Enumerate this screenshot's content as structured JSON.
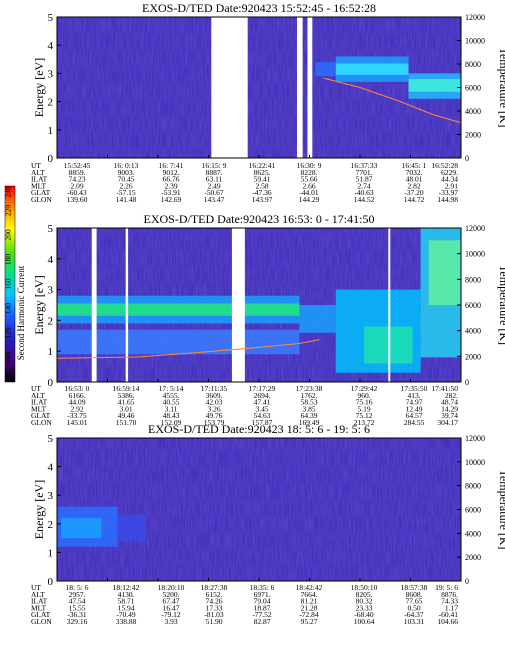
{
  "colors": {
    "background": "#ffffff",
    "spectrogram_base": "#3a26b8",
    "gap": "#ffffff",
    "temperature_line": "#ff8a3d"
  },
  "colorbar": {
    "label": "Second Harmonic Current",
    "ticks": [
      "80",
      "100",
      "120",
      "140",
      "160",
      "180",
      "200",
      "220",
      "240"
    ],
    "stops": [
      "#000000",
      "#4b0082",
      "#2020c8",
      "#1e5aff",
      "#00c8ff",
      "#00e08a",
      "#5ae000",
      "#ffff00",
      "#ff9000",
      "#ff0000"
    ]
  },
  "chart_data": [
    {
      "type": "heatmap",
      "title": "EXOS-D/TED   Date:920423  15:52:45 - 16:52:28",
      "ylabel": "Energy [eV]",
      "ylabel_right": "Temperature [K]",
      "ylim": [
        0,
        5
      ],
      "ylim_right": [
        0,
        12000
      ],
      "yticks": [
        "0",
        "1",
        "2",
        "3",
        "4",
        "5"
      ],
      "yticks_right": [
        "0",
        "2000",
        "4000",
        "6000",
        "8000",
        "10000",
        "12000"
      ],
      "x_fraction_range": [
        0,
        1
      ],
      "gaps": [
        [
          0.382,
          0.472
        ],
        [
          0.594,
          0.608
        ],
        [
          0.62,
          0.632
        ]
      ],
      "bands": [
        {
          "x": [
            0.69,
            0.87
          ],
          "y": [
            2.7,
            3.6
          ],
          "color": "#1aa0ff"
        },
        {
          "x": [
            0.69,
            0.87
          ],
          "y": [
            2.95,
            3.35
          ],
          "color": "#33e0ff"
        },
        {
          "x": [
            0.87,
            1.0
          ],
          "y": [
            2.1,
            3.0
          ],
          "color": "#24b8ff"
        },
        {
          "x": [
            0.87,
            1.0
          ],
          "y": [
            2.35,
            2.8
          ],
          "color": "#40f0d8"
        },
        {
          "x": [
            0.64,
            0.69
          ],
          "y": [
            2.9,
            3.4
          ],
          "color": "#2a6eff"
        }
      ],
      "temperature": {
        "x": [
          0.66,
          0.75,
          0.85,
          0.93,
          1.0
        ],
        "kelvin": [
          6800,
          6000,
          4800,
          3700,
          3000
        ]
      },
      "table": {
        "rows": [
          "UT",
          "ALT",
          "ILAT",
          "MLT",
          "GLAT",
          "GLON"
        ],
        "columns": [
          [
            "15:52:45",
            "8859.",
            "74.23",
            "2.09",
            "-60.43",
            "139.60"
          ],
          [
            "16: 0:13",
            "9003.",
            "70.45",
            "2.26",
            "-57.15",
            "141.48"
          ],
          [
            "16: 7:41",
            "9012.",
            "66.76",
            "2.39",
            "-53.91",
            "142.69"
          ],
          [
            "16:15: 9",
            "8887.",
            "63.11",
            "2.49",
            "-50.67",
            "143.47"
          ],
          [
            "16:22:41",
            "8625.",
            "59.41",
            "2.58",
            "-47.36",
            "143.97"
          ],
          [
            "16:30: 9",
            "8228.",
            "55.66",
            "2.66",
            "-44.01",
            "144.29"
          ],
          [
            "16:37:33",
            "7701.",
            "51.87",
            "2.74",
            "-40.63",
            "144.52"
          ],
          [
            "16:45: 1",
            "7032.",
            "48.01",
            "2.82",
            "-37.20",
            "144.72"
          ],
          [
            "16:52:28",
            "6229.",
            "44.34",
            "2.91",
            "-33.97",
            "144.98"
          ]
        ]
      }
    },
    {
      "type": "heatmap",
      "title": "EXOS-D/TED   Date:920423  16:53: 0 - 17:41:50",
      "ylabel": "Energy [eV]",
      "ylabel_right": "Temperature [K]",
      "ylim": [
        0,
        5
      ],
      "ylim_right": [
        0,
        12000
      ],
      "yticks": [
        "0",
        "1",
        "2",
        "3",
        "4",
        "5"
      ],
      "yticks_right": [
        "0",
        "2000",
        "4000",
        "6000",
        "8000",
        "10000",
        "12000"
      ],
      "x_fraction_range": [
        0,
        1
      ],
      "gaps": [
        [
          0.086,
          0.098
        ],
        [
          0.17,
          0.176
        ],
        [
          0.433,
          0.465
        ],
        [
          0.82,
          0.825
        ]
      ],
      "bands": [
        {
          "x": [
            0.0,
            0.6
          ],
          "y": [
            1.9,
            2.8
          ],
          "color": "#1aa0ff"
        },
        {
          "x": [
            0.0,
            0.6
          ],
          "y": [
            2.15,
            2.55
          ],
          "color": "#20e87c"
        },
        {
          "x": [
            0.6,
            0.69
          ],
          "y": [
            1.6,
            2.5
          ],
          "color": "#1aa0ff"
        },
        {
          "x": [
            0.69,
            0.9
          ],
          "y": [
            0.3,
            3.0
          ],
          "color": "#00c0ff"
        },
        {
          "x": [
            0.76,
            0.88
          ],
          "y": [
            0.6,
            1.8
          ],
          "color": "#1ee0b0"
        },
        {
          "x": [
            0.9,
            1.0
          ],
          "y": [
            0.8,
            5.0
          ],
          "color": "#24d0f0"
        },
        {
          "x": [
            0.92,
            1.0
          ],
          "y": [
            2.5,
            4.6
          ],
          "color": "#60f0a0"
        },
        {
          "x": [
            0.0,
            0.6
          ],
          "y": [
            0.9,
            1.7
          ],
          "color": "#3a7cff"
        }
      ],
      "temperature": {
        "x": [
          0.0,
          0.2,
          0.35,
          0.5,
          0.6,
          0.65
        ],
        "kelvin": [
          1850,
          1950,
          2300,
          2700,
          3000,
          3300
        ]
      },
      "table": {
        "rows": [
          "UT",
          "ALT",
          "ILAT",
          "MLT",
          "GLAT",
          "GLON"
        ],
        "columns": [
          [
            "16:53: 0",
            "6166.",
            "44.09",
            "2.92",
            "-33.75",
            "145.01"
          ],
          [
            "16:59:14",
            "5386.",
            "41.65",
            "3.01",
            "49.46",
            "151.70"
          ],
          [
            "17: 5:14",
            "4555.",
            "40.55",
            "3.11",
            "48.43",
            "152.09"
          ],
          [
            "17:11:35",
            "3609.",
            "42.03",
            "3.26",
            "49.76",
            "153.79"
          ],
          [
            "17:17:29",
            "2694.",
            "47.41",
            "3.45",
            "54.63",
            "157.87"
          ],
          [
            "17:23:38",
            "1762.",
            "58.53",
            "3.85",
            "64.39",
            "169.49"
          ],
          [
            "17:29:42",
            "960.",
            "75.16",
            "5.19",
            "75.12",
            "213.72"
          ],
          [
            "17:35:50",
            "413.",
            "74.97",
            "12.49",
            "64.57",
            "284.55"
          ],
          [
            "17:41:50",
            "282.",
            "48.74",
            "14.29",
            "39.74",
            "304.17"
          ]
        ]
      }
    },
    {
      "type": "heatmap",
      "title": "EXOS-D/TED   Date:920423  18: 5: 6 - 19: 5: 6",
      "ylabel": "Energy [eV]",
      "ylabel_right": "Temperature [K]",
      "ylim": [
        0,
        5
      ],
      "ylim_right": [
        0,
        12000
      ],
      "yticks": [
        "0",
        "1",
        "2",
        "3",
        "4",
        "5"
      ],
      "yticks_right": [
        "0",
        "2000",
        "4000",
        "6000",
        "8000",
        "10000",
        "12000"
      ],
      "x_fraction_range": [
        0,
        1
      ],
      "gaps": [],
      "bands": [
        {
          "x": [
            0.0,
            0.15
          ],
          "y": [
            1.2,
            2.6
          ],
          "color": "#2a6eff"
        },
        {
          "x": [
            0.01,
            0.11
          ],
          "y": [
            1.5,
            2.2
          ],
          "color": "#1aa0ff"
        },
        {
          "x": [
            0.15,
            0.22
          ],
          "y": [
            1.4,
            2.3
          ],
          "color": "#3a4ae8"
        }
      ],
      "temperature": {
        "x": [],
        "kelvin": []
      },
      "table": {
        "rows": [
          "UT",
          "ALT",
          "ILAT",
          "MLT",
          "GLAT",
          "GLON"
        ],
        "columns": [
          [
            "18: 5: 6",
            "2957.",
            "47.54",
            "15.55",
            "-36.31",
            "329.16"
          ],
          [
            "18:12:42",
            "4130.",
            "58.71",
            "15.94",
            "-70.49",
            "338.88"
          ],
          [
            "18:20:10",
            "5200.",
            "67.47",
            "16.47",
            "-79.12",
            "3.93"
          ],
          [
            "18:27:38",
            "6152.",
            "74.26",
            "17.33",
            "-81.03",
            "51.90"
          ],
          [
            "18:35: 6",
            "6971.",
            "79.04",
            "18.87",
            "-77.52",
            "82.87"
          ],
          [
            "18:42:42",
            "7664.",
            "81.21",
            "21.28",
            "-72.84",
            "95.27"
          ],
          [
            "18:50:10",
            "8205.",
            "80.32",
            "23.33",
            "-68.40",
            "100.64"
          ],
          [
            "18:57:38",
            "8608.",
            "77.65",
            "0.50",
            "-64.37",
            "103.31"
          ],
          [
            "19: 5: 6",
            "8876.",
            "74.33",
            "1.17",
            "-60.41",
            "104.66"
          ]
        ]
      }
    }
  ]
}
